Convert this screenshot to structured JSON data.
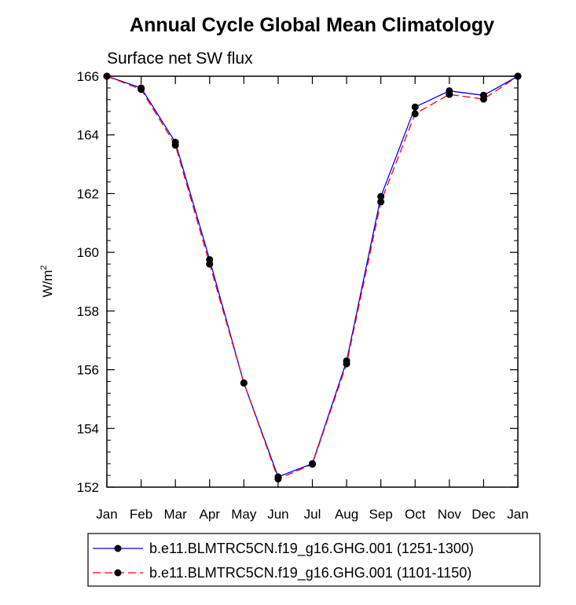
{
  "chart_data": {
    "type": "line",
    "title": "Annual Cycle Global Mean Climatology",
    "subtitle": "Surface net SW flux",
    "xlabel": "",
    "ylabel": "W/m",
    "ylabel_sup": "2",
    "categories": [
      "Jan",
      "Feb",
      "Mar",
      "Apr",
      "May",
      "Jun",
      "Jul",
      "Aug",
      "Sep",
      "Oct",
      "Nov",
      "Dec",
      "Jan"
    ],
    "ylim": [
      152,
      166
    ],
    "yticks": [
      "152",
      "154",
      "156",
      "158",
      "160",
      "162",
      "164",
      "166"
    ],
    "series": [
      {
        "name": "b.e11.BLMTRC5CN.f19_g16.GHG.001 (1251-1300)",
        "color": "#0000ff",
        "style": "solid",
        "values": [
          166.0,
          165.6,
          163.75,
          159.75,
          155.55,
          152.35,
          152.8,
          156.3,
          161.9,
          164.95,
          165.5,
          165.35,
          166.0
        ]
      },
      {
        "name": "b.e11.BLMTRC5CN.f19_g16.GHG.001 (1101-1150)",
        "color": "#ff0000",
        "style": "dashed",
        "values": [
          166.0,
          165.55,
          163.65,
          159.6,
          155.55,
          152.28,
          152.78,
          156.2,
          161.72,
          164.72,
          165.38,
          165.22,
          166.0
        ]
      }
    ],
    "legend": "bottom"
  }
}
